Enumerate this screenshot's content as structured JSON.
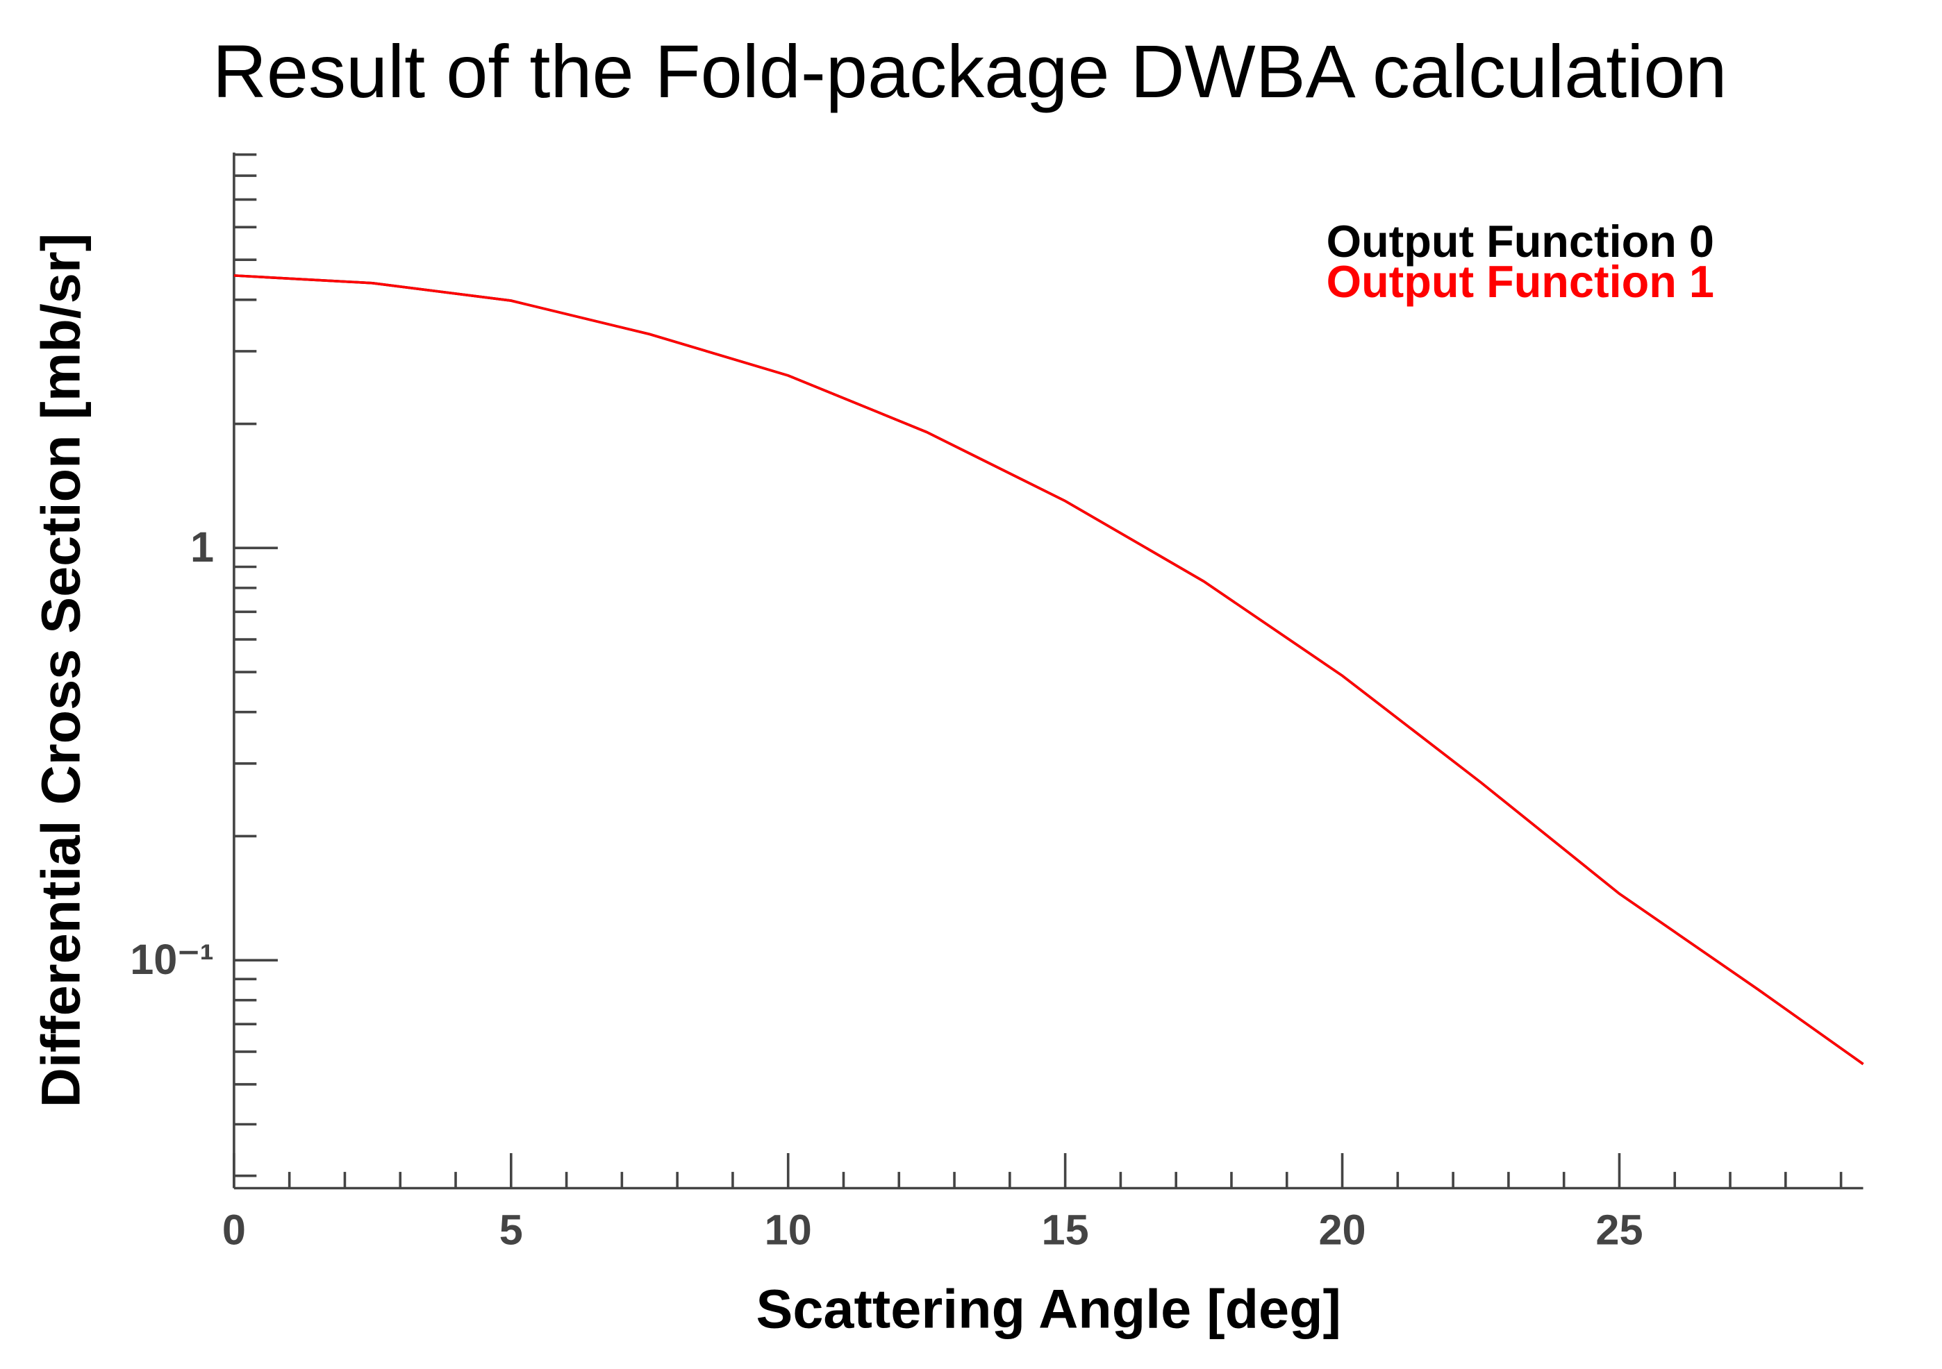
{
  "chart_data": {
    "type": "line",
    "title": "Result of the Fold-package DWBA calculation",
    "xlabel": "Scattering Angle [deg]",
    "ylabel": "Differential Cross Section [mb/sr]",
    "x": [
      0,
      2.5,
      5,
      7.5,
      10,
      12.5,
      15,
      17.5,
      20,
      22.5,
      25,
      27.5,
      29.4
    ],
    "series": [
      {
        "name": "Output Function 0",
        "color": "#000000",
        "values": [
          4.58,
          4.39,
          3.98,
          3.3,
          2.62,
          1.91,
          1.3,
          0.83,
          0.49,
          0.27,
          0.145,
          0.085,
          0.056
        ]
      },
      {
        "name": "Output Function 1",
        "color": "#ff0000",
        "values": [
          4.58,
          4.39,
          3.98,
          3.3,
          2.62,
          1.91,
          1.3,
          0.83,
          0.49,
          0.27,
          0.145,
          0.085,
          0.056
        ]
      }
    ],
    "xlim": [
      0,
      29.4
    ],
    "ylim": [
      0.028,
      9.1
    ],
    "log_y": true,
    "xticks": [
      0,
      5,
      10,
      15,
      20,
      25
    ],
    "yticks": [
      {
        "value": 0.1,
        "label": "10⁻¹"
      },
      1
    ],
    "xminorticks": [
      1,
      2,
      3,
      4,
      6,
      7,
      8,
      9,
      11,
      12,
      13,
      14,
      16,
      17,
      18,
      19,
      21,
      22,
      23,
      24,
      26,
      27,
      28,
      29
    ],
    "yminorticks": [
      0.03,
      0.04,
      0.05,
      0.06,
      0.07,
      0.08,
      0.09,
      0.2,
      0.3,
      0.4,
      0.5,
      0.6,
      0.7,
      0.8,
      0.9,
      2,
      3,
      4,
      5,
      6,
      7,
      8,
      9
    ],
    "legend": "upper right"
  }
}
